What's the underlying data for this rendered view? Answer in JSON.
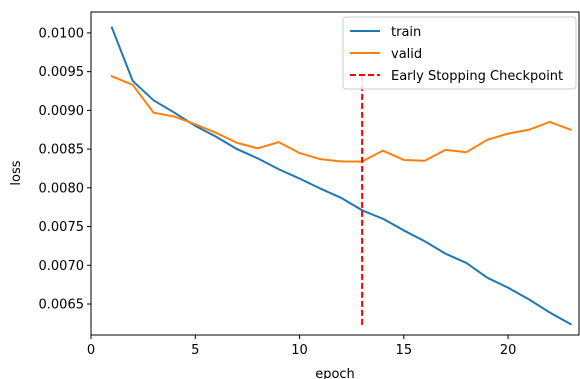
{
  "chart_data": {
    "type": "line",
    "xlabel": "epoch",
    "ylabel": "loss",
    "xlim": [
      0,
      23.4
    ],
    "ylim": [
      0.0061,
      0.01027
    ],
    "x_ticks": [
      {
        "value": 0,
        "label": "0"
      },
      {
        "value": 5,
        "label": "5"
      },
      {
        "value": 10,
        "label": "10"
      },
      {
        "value": 15,
        "label": "15"
      },
      {
        "value": 20,
        "label": "20"
      }
    ],
    "y_ticks": [
      {
        "value": 0.0065,
        "label": "0.0065"
      },
      {
        "value": 0.007,
        "label": "0.0070"
      },
      {
        "value": 0.0075,
        "label": "0.0075"
      },
      {
        "value": 0.008,
        "label": "0.0080"
      },
      {
        "value": 0.0085,
        "label": "0.0085"
      },
      {
        "value": 0.009,
        "label": "0.0090"
      },
      {
        "value": 0.0095,
        "label": "0.0095"
      },
      {
        "value": 0.01,
        "label": "0.0100"
      }
    ],
    "x": [
      1,
      2,
      3,
      4,
      5,
      6,
      7,
      8,
      9,
      10,
      11,
      12,
      13,
      14,
      15,
      16,
      17,
      18,
      19,
      20,
      21,
      22,
      23
    ],
    "series": [
      {
        "name": "train",
        "color": "#1f77b4",
        "values": [
          0.01007,
          0.00938,
          0.00913,
          0.00897,
          0.0088,
          0.00866,
          0.0085,
          0.00838,
          0.00824,
          0.00812,
          0.00799,
          0.00787,
          0.00771,
          0.0076,
          0.00745,
          0.00731,
          0.00715,
          0.00703,
          0.00684,
          0.00671,
          0.00656,
          0.00639,
          0.00624
        ]
      },
      {
        "name": "valid",
        "color": "#ff7f0e",
        "values": [
          0.00944,
          0.00933,
          0.00897,
          0.00892,
          0.00882,
          0.00871,
          0.00858,
          0.00851,
          0.00859,
          0.00845,
          0.00837,
          0.00834,
          0.00834,
          0.00848,
          0.00836,
          0.00835,
          0.00849,
          0.00846,
          0.00862,
          0.0087,
          0.00875,
          0.00885,
          0.00875
        ]
      }
    ],
    "checkpoint": {
      "name": "Early Stopping Checkpoint",
      "color": "#ff0000",
      "x": 13,
      "y_range": [
        0.00623,
        0.00944
      ]
    },
    "legend_position": "top-right",
    "grid": false
  }
}
